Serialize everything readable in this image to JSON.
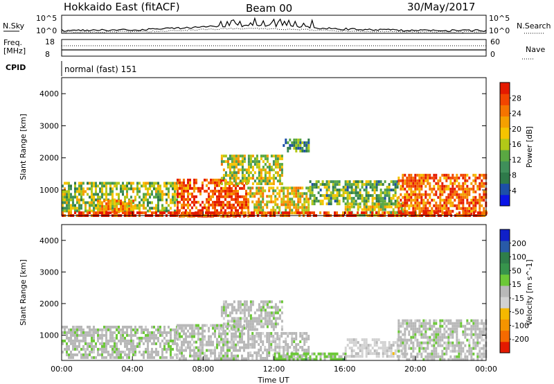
{
  "header": {
    "site": "Hokkaido East (fitACF)",
    "beam": "Beam 00",
    "date": "30/May/2017"
  },
  "top_panels": {
    "nsky": {
      "label": "N.Sky",
      "ticks": [
        "10^5",
        "10^0"
      ]
    },
    "nsearch": {
      "label": "N.Search",
      "ticks": [
        "10^5",
        "10^0"
      ]
    },
    "freq": {
      "label_line1": "Freq.",
      "label_line2": "[MHz]",
      "ticks": [
        "18",
        "8"
      ]
    },
    "nave": {
      "label": "Nave",
      "ticks": [
        "60",
        "0"
      ]
    },
    "cpid": {
      "label": "CPID",
      "value": "normal (fast) 151"
    }
  },
  "colors": {
    "power": [
      "#0a14e6",
      "#1d4fa8",
      "#2e7a4a",
      "#3f8f5a",
      "#5aa842",
      "#b2c818",
      "#f5c400",
      "#f5a000",
      "#f57400",
      "#f24500",
      "#e41a00"
    ],
    "velocity": [
      "#1020c8",
      "#285aa8",
      "#2f7e4a",
      "#37944c",
      "#6cc837",
      "#b8b8b8",
      "#d2d2d2",
      "#f5b800",
      "#f59400",
      "#f56a00",
      "#e41a00"
    ]
  },
  "chart_data": [
    {
      "type": "heatmap",
      "name": "power",
      "xlabel": "",
      "ylabel": "Slant Range [km]",
      "ylim": [
        200,
        4500
      ],
      "xlim": [
        0,
        24
      ],
      "yticks": [
        "1000",
        "2000",
        "3000",
        "4000"
      ],
      "colorbar": {
        "label": "Power [dB]",
        "ticks": [
          "4",
          "8",
          "12",
          "16",
          "20",
          "24",
          "28"
        ],
        "range": [
          0,
          31
        ]
      },
      "regions": [
        {
          "t0": 0.0,
          "t1": 6.5,
          "r0": 300,
          "r1": 1250,
          "v": 14
        },
        {
          "t0": 2.0,
          "t1": 4.0,
          "r0": 300,
          "r1": 700,
          "v": 22
        },
        {
          "t0": 6.5,
          "t1": 10.5,
          "r0": 220,
          "r1": 1350,
          "v": 26
        },
        {
          "t0": 10.5,
          "t1": 14.0,
          "r0": 250,
          "r1": 1100,
          "v": 18
        },
        {
          "t0": 9.0,
          "t1": 12.5,
          "r0": 1200,
          "r1": 2100,
          "v": 16
        },
        {
          "t0": 12.5,
          "t1": 14.0,
          "r0": 2200,
          "r1": 2600,
          "v": 10
        },
        {
          "t0": 14.0,
          "t1": 19.0,
          "r0": 600,
          "r1": 1300,
          "v": 12
        },
        {
          "t0": 16.0,
          "t1": 19.5,
          "r0": 250,
          "r1": 600,
          "v": 16
        },
        {
          "t0": 19.0,
          "t1": 24.0,
          "r0": 250,
          "r1": 1500,
          "v": 25
        },
        {
          "t0": 0.0,
          "t1": 24.0,
          "r0": 200,
          "r1": 330,
          "v": 28
        }
      ]
    },
    {
      "type": "heatmap",
      "name": "velocity",
      "xlabel": "Time UT",
      "ylabel": "Slant Range [km]",
      "ylim": [
        200,
        4500
      ],
      "xlim": [
        0,
        24
      ],
      "xticks": [
        "00:00",
        "04:00",
        "08:00",
        "12:00",
        "16:00",
        "20:00",
        "00:00"
      ],
      "yticks": [
        "1000",
        "2000",
        "3000",
        "4000"
      ],
      "colorbar": {
        "label": "Velocity [m s^-1]",
        "ticks": [
          "200",
          "100",
          "50",
          "15",
          "-15",
          "-50",
          "-100",
          "-200"
        ],
        "range": [
          -250,
          250
        ]
      },
      "regions": [
        {
          "t0": 0.0,
          "t1": 6.5,
          "r0": 300,
          "r1": 1300,
          "v": 5
        },
        {
          "t0": 6.5,
          "t1": 10.5,
          "r0": 220,
          "r1": 1350,
          "v": 0
        },
        {
          "t0": 10.5,
          "t1": 14.0,
          "r0": 250,
          "r1": 1100,
          "v": -5
        },
        {
          "t0": 9.0,
          "t1": 12.5,
          "r0": 1200,
          "r1": 2100,
          "v": 0
        },
        {
          "t0": 12.0,
          "t1": 16.0,
          "r0": 220,
          "r1": 450,
          "v": 40
        },
        {
          "t0": 16.0,
          "t1": 19.5,
          "r0": 300,
          "r1": 900,
          "v": -40
        },
        {
          "t0": 19.0,
          "t1": 24.0,
          "r0": 250,
          "r1": 1500,
          "v": 0
        }
      ]
    }
  ]
}
